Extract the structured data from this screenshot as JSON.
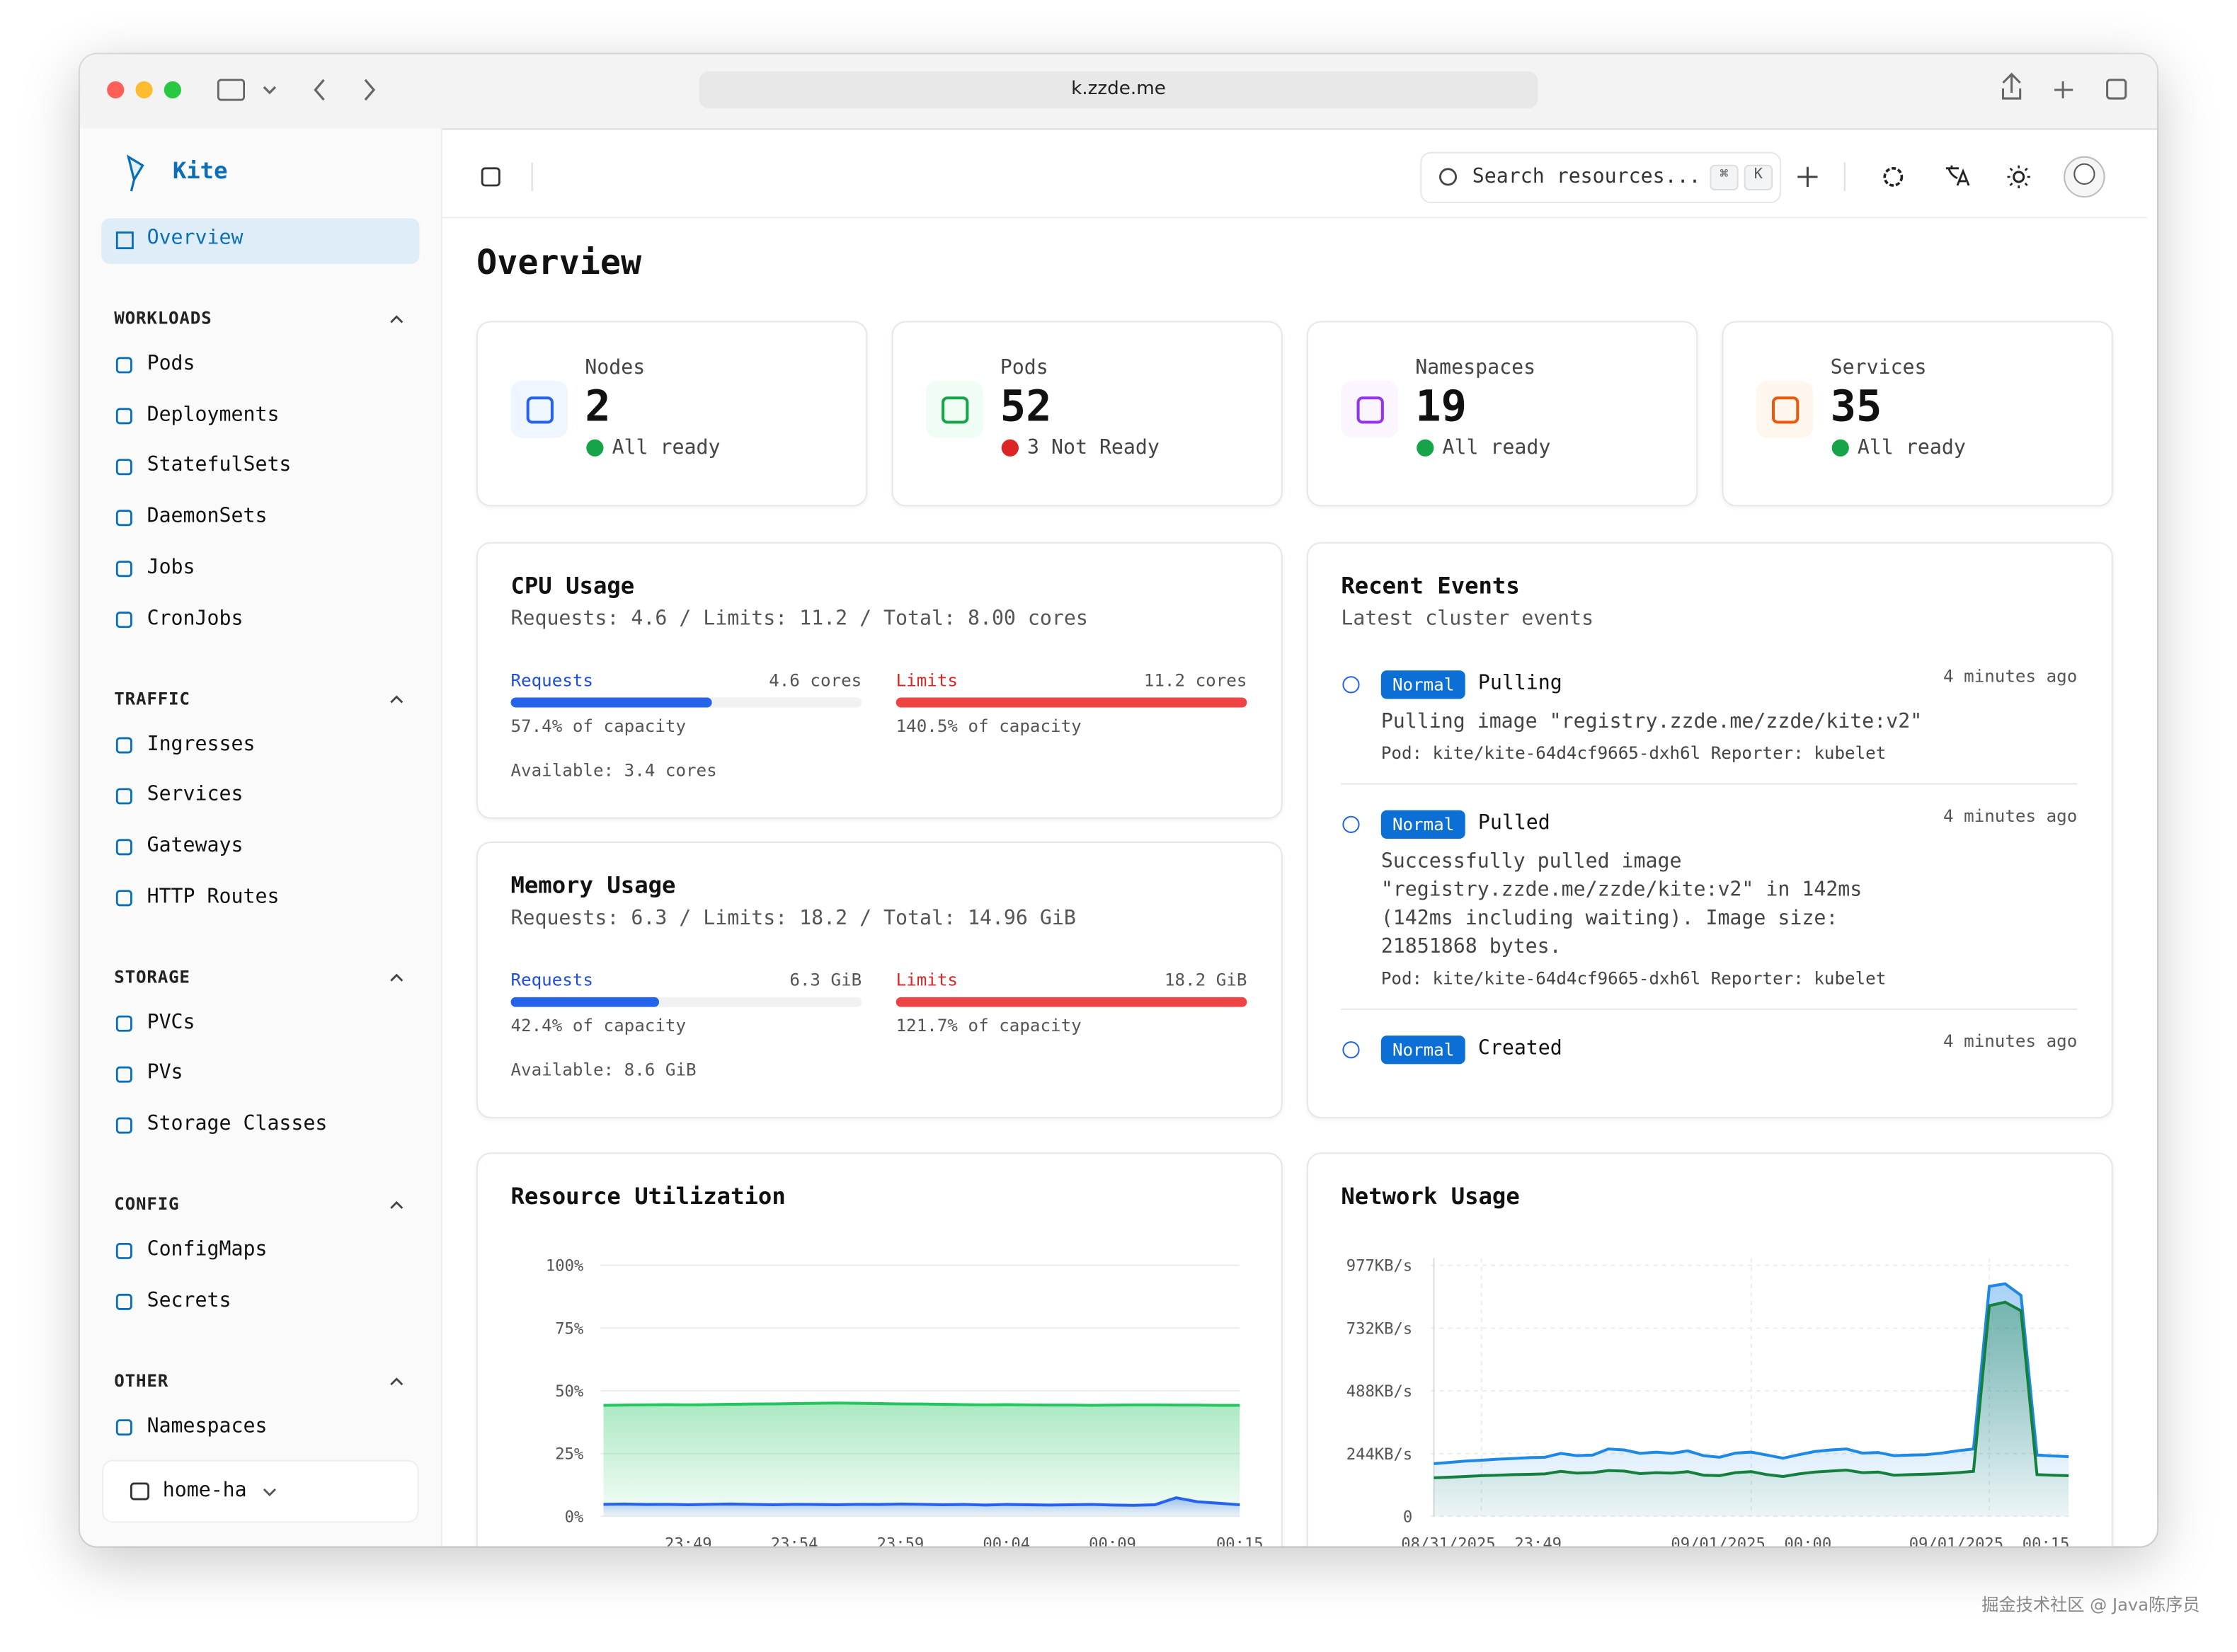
{
  "browser": {
    "url": "k.zzde.me"
  },
  "sidebar": {
    "brand": "Kite",
    "active": "Overview",
    "groups": [
      {
        "title": "WORKLOADS",
        "items": [
          "Pods",
          "Deployments",
          "StatefulSets",
          "DaemonSets",
          "Jobs",
          "CronJobs"
        ]
      },
      {
        "title": "TRAFFIC",
        "items": [
          "Ingresses",
          "Services",
          "Gateways",
          "HTTP Routes"
        ]
      },
      {
        "title": "STORAGE",
        "items": [
          "PVCs",
          "PVs",
          "Storage Classes"
        ]
      },
      {
        "title": "CONFIG",
        "items": [
          "ConfigMaps",
          "Secrets"
        ]
      },
      {
        "title": "OTHER",
        "items": [
          "Namespaces"
        ]
      }
    ],
    "cluster": "home-ha"
  },
  "header": {
    "search": "Search resources...",
    "shortcut": [
      "⌘",
      "K"
    ]
  },
  "page": {
    "title": "Overview"
  },
  "stats": [
    {
      "label": "Nodes",
      "value": 2,
      "status": "All ready",
      "ok": true
    },
    {
      "label": "Pods",
      "value": 52,
      "status": "3 Not Ready",
      "ok": false
    },
    {
      "label": "Namespaces",
      "value": 19,
      "status": "All ready",
      "ok": true
    },
    {
      "label": "Services",
      "value": 35,
      "status": "All ready",
      "ok": true
    }
  ],
  "usage": [
    {
      "title": "CPU Usage",
      "summary": "Requests: 4.6 / Limits: 11.2 / Total: 8.00 cores",
      "requests": {
        "label": "Requests",
        "amount": "4.6 cores",
        "percent": "57.4% of capacity"
      },
      "limits": {
        "label": "Limits",
        "amount": "11.2 cores",
        "percent": "140.5% of capacity"
      },
      "available": "Available: 3.4 cores"
    },
    {
      "title": "Memory Usage",
      "summary": "Requests: 6.3 / Limits: 18.2 / Total: 14.96 GiB",
      "requests": {
        "label": "Requests",
        "amount": "6.3 GiB",
        "percent": "42.4% of capacity"
      },
      "limits": {
        "label": "Limits",
        "amount": "18.2 GiB",
        "percent": "121.7% of capacity"
      },
      "available": "Available: 8.6 GiB"
    }
  ],
  "events": {
    "title": "Recent Events",
    "subtitle": "Latest cluster events",
    "items": [
      {
        "type": "Normal",
        "reason": "Pulling",
        "time": "4 minutes ago",
        "message": "Pulling image \"registry.zzde.me/zzde/kite:v2\"",
        "meta": "Pod: kite/kite-64d4cf9665-dxh6l Reporter: kubelet"
      },
      {
        "type": "Normal",
        "reason": "Pulled",
        "time": "4 minutes ago",
        "message": "Successfully pulled image \"registry.zzde.me/zzde/kite:v2\" in 142ms (142ms including waiting). Image size: 21851868 bytes.",
        "meta": "Pod: kite/kite-64d4cf9665-dxh6l Reporter: kubelet"
      },
      {
        "type": "Normal",
        "reason": "Created",
        "time": "4 minutes ago"
      }
    ]
  },
  "charts": [
    {
      "type": "area",
      "title": "Resource Utilization",
      "categories": [
        null,
        null,
        null,
        null,
        "23:49",
        null,
        null,
        null,
        null,
        "23:54",
        null,
        null,
        null,
        null,
        "23:59",
        null,
        null,
        null,
        null,
        "00:04",
        null,
        null,
        null,
        null,
        "00:09",
        null,
        null,
        null,
        null,
        null,
        "00:15"
      ],
      "ylim": [
        0,
        100
      ],
      "yticks": [
        {
          "value": 0,
          "label": "0%"
        },
        {
          "value": 25,
          "label": "25%"
        },
        {
          "value": 50,
          "label": "50%"
        },
        {
          "value": 75,
          "label": "75%"
        },
        {
          "value": 100,
          "label": "100%"
        }
      ],
      "series": [
        {
          "color": "#22c55e",
          "values": [
            44.2,
            44.3,
            44.4,
            44.5,
            44.4,
            44.5,
            44.6,
            44.7,
            44.8,
            44.9,
            45.0,
            45.1,
            45.0,
            44.9,
            44.8,
            44.7,
            44.6,
            44.5,
            44.4,
            44.5,
            44.4,
            44.3,
            44.3,
            44.2,
            44.3,
            44.4,
            44.4,
            44.3,
            44.3,
            44.2,
            44.2
          ]
        },
        {
          "color": "#2563eb",
          "values": [
            4.8,
            4.9,
            4.7,
            4.8,
            4.6,
            4.8,
            4.9,
            4.7,
            4.6,
            4.8,
            4.7,
            4.6,
            4.8,
            4.7,
            4.9,
            4.8,
            4.6,
            4.7,
            4.5,
            4.7,
            4.6,
            4.5,
            4.6,
            4.7,
            4.5,
            4.4,
            4.6,
            7.4,
            5.8,
            5.2,
            4.6
          ]
        }
      ]
    },
    {
      "type": "area",
      "title": "Network Usage",
      "categories": [
        null,
        null,
        null,
        "08/31/2025, 23:49",
        null,
        null,
        null,
        null,
        null,
        null,
        null,
        null,
        null,
        null,
        null,
        null,
        null,
        null,
        null,
        null,
        "09/01/2025, 00:00",
        null,
        null,
        null,
        null,
        null,
        null,
        null,
        null,
        null,
        null,
        null,
        null,
        null,
        null,
        "09/01/2025, 00:15",
        null,
        null,
        null,
        null,
        null
      ],
      "ylim": [
        0,
        977
      ],
      "yticks": [
        0,
        {
          "value": 244,
          "label": "244KB/s"
        },
        {
          "value": 488,
          "label": "488KB/s"
        },
        {
          "value": 732,
          "label": "732KB/s"
        },
        {
          "value": 977,
          "label": "977KB/s"
        }
      ],
      "series": [
        {
          "color": "#1e88e5",
          "values": [
            205,
            210,
            215,
            218,
            222,
            225,
            228,
            230,
            245,
            236,
            238,
            262,
            258,
            245,
            250,
            245,
            255,
            236,
            230,
            246,
            250,
            238,
            226,
            240,
            252,
            258,
            262,
            246,
            248,
            236,
            238,
            240,
            246,
            255,
            262,
            895,
            905,
            860,
            238,
            235,
            232
          ]
        },
        {
          "color": "#15803d",
          "values": [
            150,
            152,
            155,
            158,
            160,
            162,
            163,
            165,
            175,
            168,
            170,
            178,
            176,
            166,
            170,
            168,
            174,
            160,
            158,
            170,
            174,
            162,
            155,
            165,
            172,
            176,
            180,
            170,
            172,
            160,
            162,
            164,
            166,
            170,
            175,
            820,
            833,
            800,
            162,
            160,
            158
          ]
        }
      ]
    }
  ],
  "watermark": "掘金技术社区 @ Java陈序员"
}
